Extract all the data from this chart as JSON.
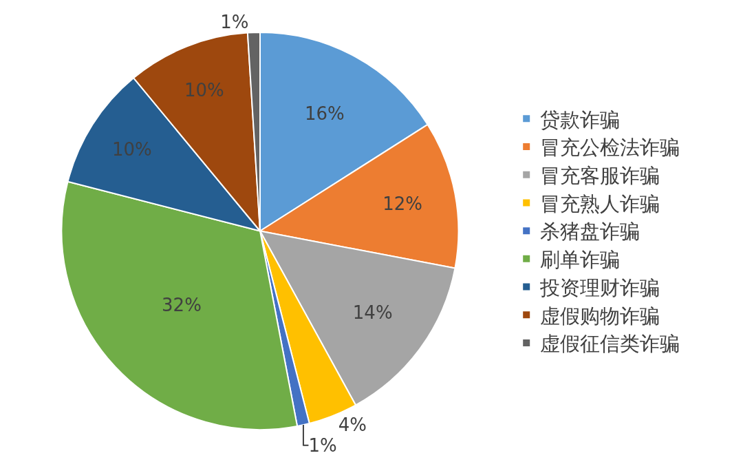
{
  "chart_data": {
    "type": "pie",
    "categories": [
      "贷款诈骗",
      "冒充公检法诈骗",
      "冒充客服诈骗",
      "冒充熟人诈骗",
      "杀猪盘诈骗",
      "刷单诈骗",
      "投资理财诈骗",
      "虚假购物诈骗",
      "虚假征信类诈骗"
    ],
    "values": [
      16,
      12,
      14,
      4,
      1,
      32,
      10,
      10,
      1
    ],
    "colors": [
      "#5b9bd5",
      "#ed7d31",
      "#a5a5a5",
      "#ffc000",
      "#4472c4",
      "#70ad47",
      "#255e91",
      "#9e480e",
      "#636363"
    ],
    "value_labels": [
      "16%",
      "12%",
      "14%",
      "4%",
      "1%",
      "32%",
      "10%",
      "10%",
      "1%"
    ],
    "legend": "right"
  }
}
